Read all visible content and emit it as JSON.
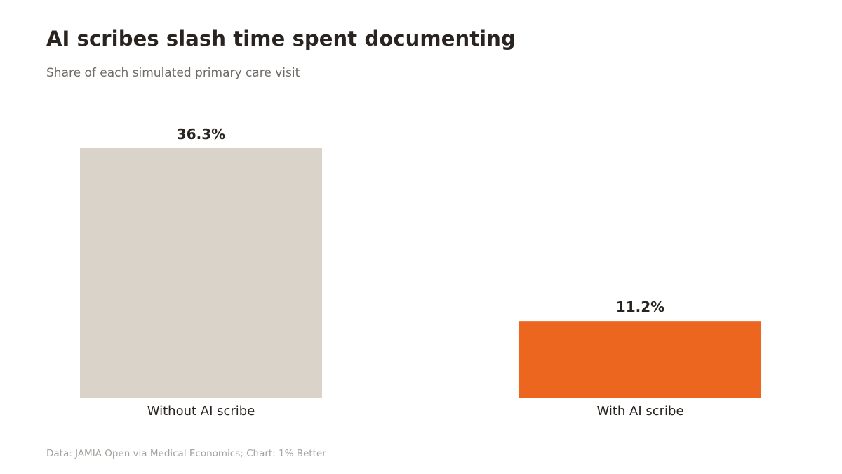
{
  "chart_data": {
    "type": "bar",
    "title": "AI scribes slash time spent documenting",
    "subtitle": "Share of each simulated primary care visit",
    "categories": [
      "Without AI scribe",
      "With AI scribe"
    ],
    "values": [
      36.3,
      11.2
    ],
    "value_labels": [
      "36.3%",
      "11.2%"
    ],
    "colors": [
      "#dad3ca",
      "#ec6620"
    ],
    "ylim": [
      0,
      36.3
    ],
    "grid": false,
    "legend": "none",
    "source": "Data: JAMIA Open via Medical Economics; Chart: 1% Better"
  },
  "colors": {
    "title": "#2a2420",
    "subtitle": "#6f6a66",
    "value_label": "#2a2420",
    "category_label": "#2a2420",
    "source": "#a6a29e"
  }
}
